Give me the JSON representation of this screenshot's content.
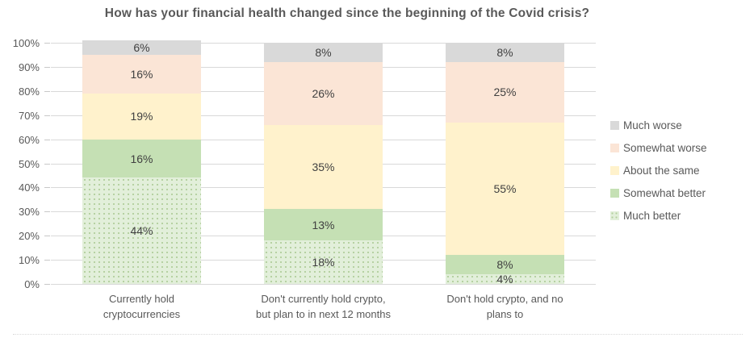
{
  "title": "How has your financial health changed since the beginning of the Covid crisis?",
  "chart_data": {
    "type": "bar",
    "stacked": true,
    "orientation": "vertical",
    "title": "How has your financial health changed since the beginning of the Covid crisis?",
    "categories": [
      "Currently hold\ncryptocurrencies",
      "Don't currently hold crypto,\nbut plan to in next 12 months",
      "Don't hold crypto, and no\nplans to"
    ],
    "series": [
      {
        "name": "Much better",
        "values": [
          44,
          18,
          4
        ],
        "color": "#e2efda",
        "pattern": "dots"
      },
      {
        "name": "Somewhat better",
        "values": [
          16,
          13,
          8
        ],
        "color": "#c5e0b4",
        "pattern": "solid"
      },
      {
        "name": "About the same",
        "values": [
          19,
          35,
          55
        ],
        "color": "#fff2cc",
        "pattern": "solid"
      },
      {
        "name": "Somewhat worse",
        "values": [
          16,
          26,
          25
        ],
        "color": "#fbe5d6",
        "pattern": "solid"
      },
      {
        "name": "Much worse",
        "values": [
          6,
          8,
          8
        ],
        "color": "#d9d9d9",
        "pattern": "solid"
      }
    ],
    "data_label_format": "{value}%",
    "ylim": [
      0,
      100
    ],
    "y_ticks": [
      "0%",
      "10%",
      "20%",
      "30%",
      "40%",
      "50%",
      "60%",
      "70%",
      "80%",
      "90%",
      "100%"
    ],
    "grid": true,
    "gridline_color": "#d9d9d9",
    "legend_position": "right",
    "legend_order": [
      "Much worse",
      "Somewhat worse",
      "About the same",
      "Somewhat better",
      "Much better"
    ],
    "xlabel": "",
    "ylabel": ""
  },
  "colors": {
    "title_text": "#595959",
    "axis_text": "#595959",
    "data_label_text": "#404040",
    "gridline": "#d9d9d9"
  }
}
